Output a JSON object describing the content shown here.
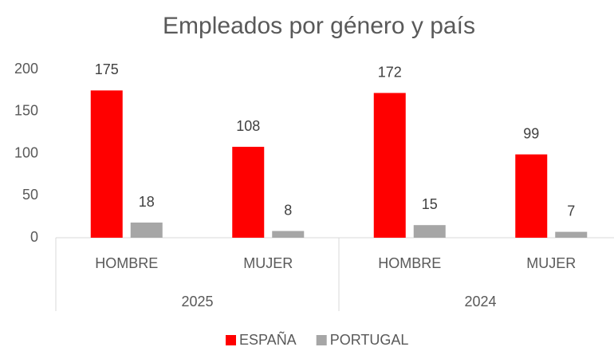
{
  "chart_data": {
    "type": "bar",
    "title": "Empleados por  género y país",
    "categories": [
      "HOMBRE",
      "MUJER",
      "HOMBRE",
      "MUJER"
    ],
    "groups": [
      "2025",
      "2024"
    ],
    "series": [
      {
        "name": "ESPAÑA",
        "color": "#ff0000",
        "values": [
          175,
          108,
          172,
          99
        ]
      },
      {
        "name": "PORTUGAL",
        "color": "#a6a6a6",
        "values": [
          18,
          8,
          15,
          7
        ]
      }
    ],
    "ylim": [
      0,
      200
    ],
    "yticks": [
      0,
      50,
      100,
      150,
      200
    ],
    "grid": false,
    "legend": "bottom"
  }
}
